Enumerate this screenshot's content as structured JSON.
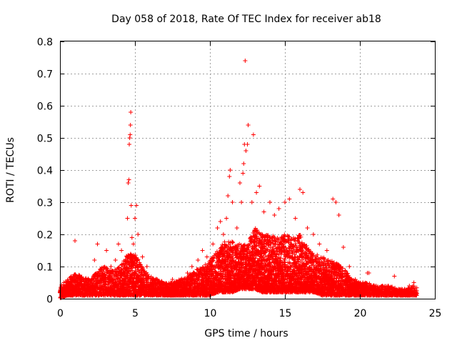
{
  "chart_data": {
    "type": "scatter",
    "title": "Day 058 of 2018, Rate Of TEC Index for receiver ab18",
    "xlabel": "GPS time / hours",
    "ylabel": "ROTI / TECUs",
    "xlim": [
      0,
      25
    ],
    "ylim": [
      0,
      0.8
    ],
    "xticks": [
      0,
      5,
      10,
      15,
      20,
      25
    ],
    "yticks": [
      0,
      0.1,
      0.2,
      0.3,
      0.4,
      0.5,
      0.6,
      0.7,
      0.8
    ],
    "xtick_labels": [
      "0",
      "5",
      "10",
      "15",
      "20",
      "25"
    ],
    "ytick_labels": [
      "0",
      "0.1",
      "0.2",
      "0.3",
      "0.4",
      "0.5",
      "0.6",
      "0.7",
      "0.8"
    ],
    "grid": true,
    "marker": "+",
    "color": "#ff0000",
    "series": [
      {
        "name": "ROTI",
        "points": [
          [
            0.2,
            0.03
          ],
          [
            0.5,
            0.05
          ],
          [
            0.8,
            0.06
          ],
          [
            1.0,
            0.18
          ],
          [
            1.3,
            0.06
          ],
          [
            1.7,
            0.05
          ],
          [
            2.0,
            0.04
          ],
          [
            2.3,
            0.12
          ],
          [
            2.5,
            0.17
          ],
          [
            2.8,
            0.08
          ],
          [
            3.1,
            0.15
          ],
          [
            3.4,
            0.1
          ],
          [
            3.7,
            0.12
          ],
          [
            3.9,
            0.17
          ],
          [
            4.1,
            0.15
          ],
          [
            4.3,
            0.1
          ],
          [
            4.5,
            0.25
          ],
          [
            4.55,
            0.36
          ],
          [
            4.6,
            0.37
          ],
          [
            4.62,
            0.48
          ],
          [
            4.65,
            0.5
          ],
          [
            4.68,
            0.51
          ],
          [
            4.7,
            0.54
          ],
          [
            4.72,
            0.58
          ],
          [
            4.75,
            0.29
          ],
          [
            4.8,
            0.19
          ],
          [
            4.9,
            0.17
          ],
          [
            5.0,
            0.25
          ],
          [
            5.1,
            0.29
          ],
          [
            5.2,
            0.2
          ],
          [
            5.5,
            0.13
          ],
          [
            5.8,
            0.1
          ],
          [
            6.2,
            0.06
          ],
          [
            6.6,
            0.05
          ],
          [
            7.0,
            0.04
          ],
          [
            7.5,
            0.06
          ],
          [
            8.0,
            0.05
          ],
          [
            8.5,
            0.08
          ],
          [
            8.8,
            0.1
          ],
          [
            9.2,
            0.12
          ],
          [
            9.5,
            0.15
          ],
          [
            9.8,
            0.13
          ],
          [
            10.2,
            0.17
          ],
          [
            10.5,
            0.22
          ],
          [
            10.7,
            0.24
          ],
          [
            10.9,
            0.2
          ],
          [
            11.1,
            0.25
          ],
          [
            11.2,
            0.32
          ],
          [
            11.3,
            0.38
          ],
          [
            11.35,
            0.4
          ],
          [
            11.5,
            0.3
          ],
          [
            11.8,
            0.22
          ],
          [
            12.0,
            0.36
          ],
          [
            12.1,
            0.3
          ],
          [
            12.2,
            0.39
          ],
          [
            12.25,
            0.42
          ],
          [
            12.3,
            0.48
          ],
          [
            12.35,
            0.74
          ],
          [
            12.4,
            0.46
          ],
          [
            12.5,
            0.48
          ],
          [
            12.55,
            0.54
          ],
          [
            12.8,
            0.3
          ],
          [
            12.9,
            0.51
          ],
          [
            13.1,
            0.33
          ],
          [
            13.3,
            0.35
          ],
          [
            13.6,
            0.27
          ],
          [
            14.0,
            0.3
          ],
          [
            14.3,
            0.26
          ],
          [
            14.6,
            0.28
          ],
          [
            15.0,
            0.3
          ],
          [
            15.3,
            0.31
          ],
          [
            15.7,
            0.25
          ],
          [
            16.0,
            0.34
          ],
          [
            16.2,
            0.33
          ],
          [
            16.5,
            0.22
          ],
          [
            16.9,
            0.2
          ],
          [
            17.3,
            0.17
          ],
          [
            17.8,
            0.15
          ],
          [
            18.2,
            0.31
          ],
          [
            18.4,
            0.3
          ],
          [
            18.6,
            0.26
          ],
          [
            18.9,
            0.16
          ],
          [
            19.3,
            0.1
          ],
          [
            19.7,
            0.06
          ],
          [
            20.2,
            0.05
          ],
          [
            20.5,
            0.08
          ],
          [
            20.6,
            0.08
          ],
          [
            21.0,
            0.04
          ],
          [
            21.5,
            0.04
          ],
          [
            22.0,
            0.03
          ],
          [
            22.3,
            0.07
          ],
          [
            22.8,
            0.03
          ],
          [
            23.3,
            0.04
          ],
          [
            23.6,
            0.05
          ]
        ]
      }
    ],
    "density_envelope": {
      "description": "dense band of points; approximate upper/lower ROTI envelope per hour",
      "hours": [
        0,
        0.5,
        1,
        1.5,
        2,
        2.5,
        3,
        3.5,
        4,
        4.5,
        5,
        5.5,
        6,
        6.5,
        7,
        7.5,
        8,
        8.5,
        9,
        9.5,
        10,
        10.5,
        11,
        11.5,
        12,
        12.5,
        13,
        13.5,
        14,
        14.5,
        15,
        15.5,
        16,
        16.5,
        17,
        17.5,
        18,
        18.5,
        19,
        19.5,
        20,
        20.5,
        21,
        21.5,
        22,
        22.5,
        23,
        23.5,
        23.8
      ],
      "upper": [
        0.04,
        0.06,
        0.08,
        0.07,
        0.06,
        0.09,
        0.1,
        0.09,
        0.1,
        0.14,
        0.14,
        0.1,
        0.07,
        0.06,
        0.05,
        0.05,
        0.06,
        0.07,
        0.09,
        0.1,
        0.12,
        0.15,
        0.18,
        0.18,
        0.17,
        0.17,
        0.22,
        0.2,
        0.2,
        0.19,
        0.2,
        0.19,
        0.2,
        0.16,
        0.14,
        0.13,
        0.12,
        0.11,
        0.09,
        0.06,
        0.05,
        0.05,
        0.04,
        0.04,
        0.04,
        0.03,
        0.03,
        0.04,
        0.04
      ],
      "lower": [
        0.0,
        0.01,
        0.01,
        0.01,
        0.01,
        0.01,
        0.01,
        0.01,
        0.01,
        0.01,
        0.01,
        0.01,
        0.01,
        0.01,
        0.01,
        0.01,
        0.01,
        0.01,
        0.01,
        0.01,
        0.01,
        0.02,
        0.02,
        0.02,
        0.03,
        0.03,
        0.03,
        0.02,
        0.02,
        0.02,
        0.02,
        0.02,
        0.02,
        0.02,
        0.02,
        0.01,
        0.01,
        0.01,
        0.01,
        0.01,
        0.01,
        0.01,
        0.01,
        0.01,
        0.01,
        0.01,
        0.01,
        0.01,
        0.01
      ]
    }
  }
}
